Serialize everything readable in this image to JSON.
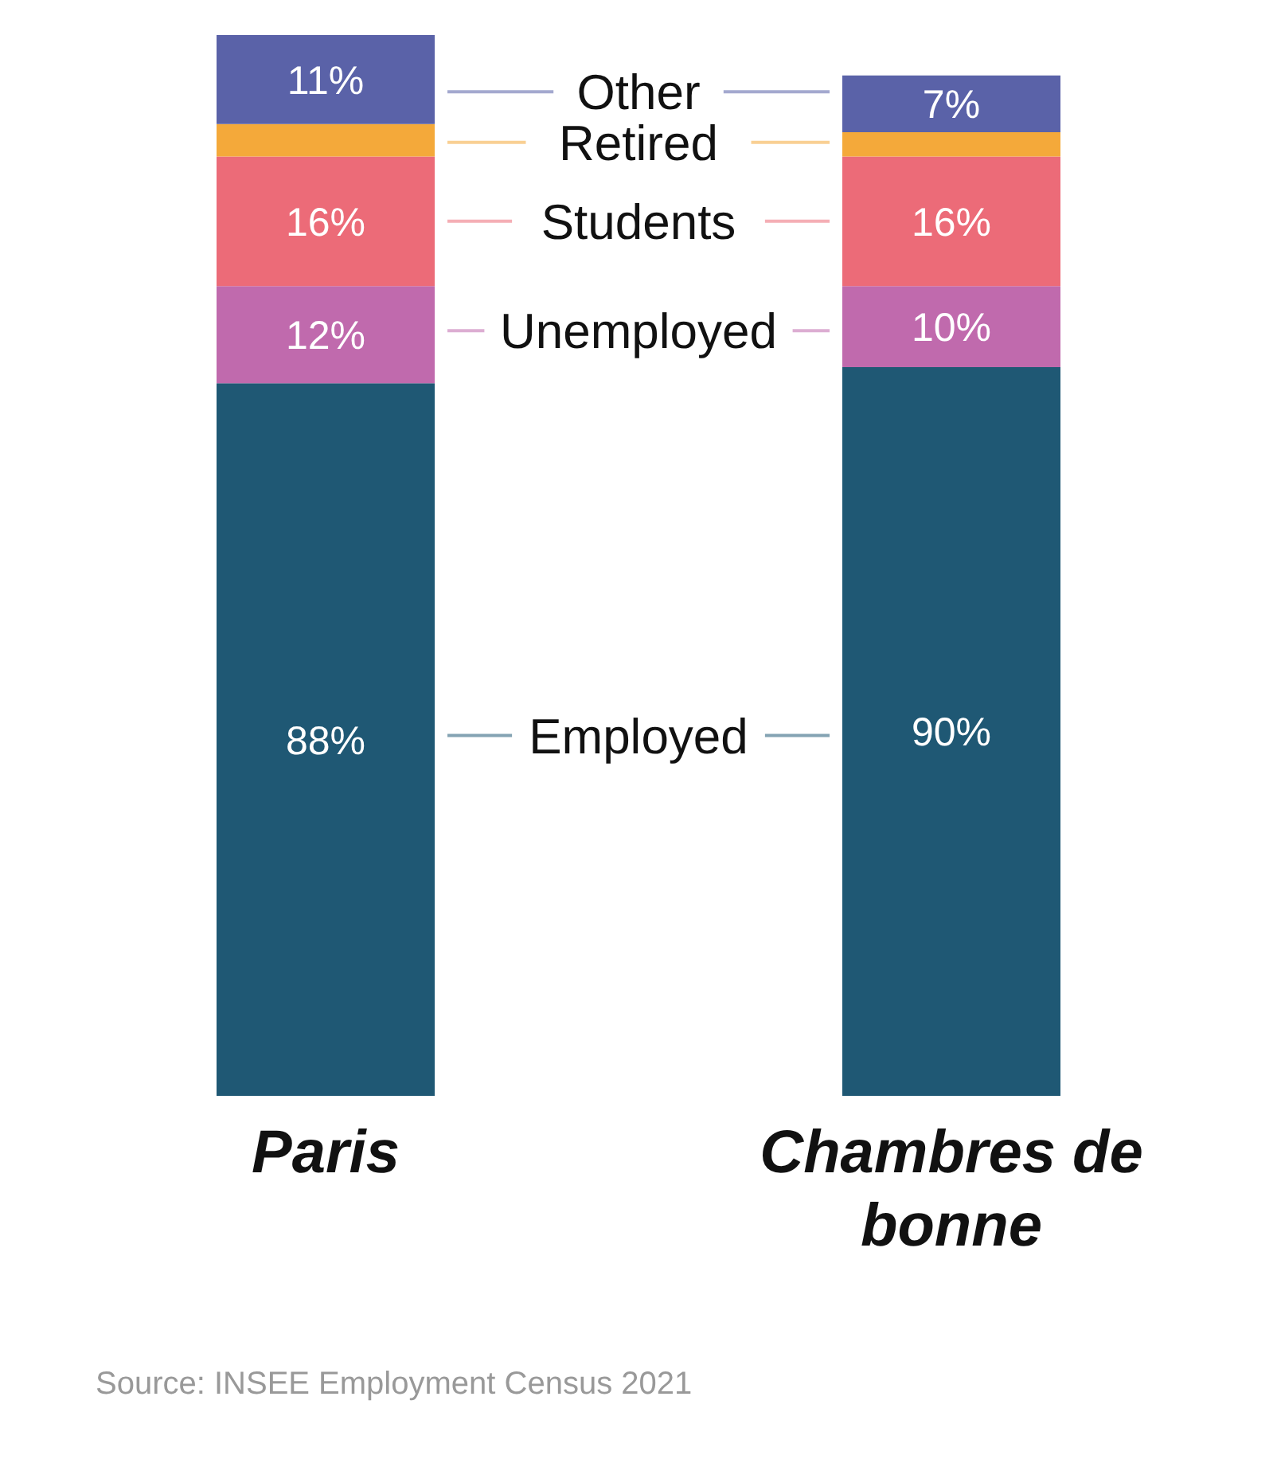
{
  "chart_data": {
    "type": "bar",
    "stacked": true,
    "legend": "center",
    "categories": [
      "Paris",
      "Chambres de bonne"
    ],
    "series": [
      {
        "name": "Employed",
        "color": "#1f5874",
        "values": [
          88,
          90
        ],
        "value_labels": [
          "88%",
          "90%"
        ]
      },
      {
        "name": "Unemployed",
        "color": "#c06aad",
        "values": [
          12,
          10
        ],
        "value_labels": [
          "12%",
          "10%"
        ]
      },
      {
        "name": "Students",
        "color": "#ec6b78",
        "values": [
          16,
          16
        ],
        "value_labels": [
          "16%",
          "16%"
        ]
      },
      {
        "name": "Retired",
        "color": "#f4a93a",
        "values": [
          4,
          3
        ],
        "value_labels": [
          null,
          null
        ]
      },
      {
        "name": "Other",
        "color": "#5a62a8",
        "values": [
          11,
          7
        ],
        "value_labels": [
          "11%",
          "7%"
        ]
      }
    ],
    "annotations": [
      "Source: INSEE Employment Census 2021"
    ]
  }
}
